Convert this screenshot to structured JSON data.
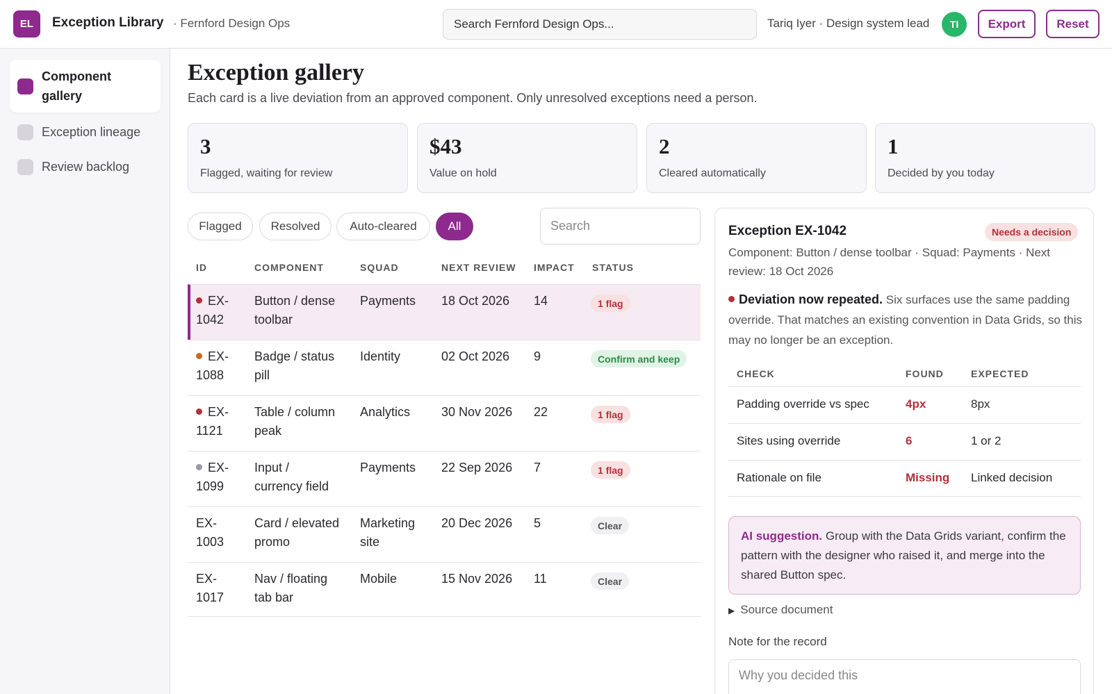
{
  "header": {
    "logo_text": "EL",
    "app_title": "Exception Library",
    "org": "· Fernford Design Ops",
    "search_placeholder": "Search Fernford Design Ops...",
    "user": "Tariq Iyer · Design system lead",
    "avatar": "TI",
    "export_label": "Export",
    "reset_label": "Reset"
  },
  "sidebar": {
    "items": [
      {
        "label": "Component gallery",
        "active": true
      },
      {
        "label": "Exception lineage",
        "active": false
      },
      {
        "label": "Review backlog",
        "active": false
      }
    ]
  },
  "main": {
    "title": "Exception gallery",
    "subtitle": "Each card is a live deviation from an approved component. Only unresolved exceptions need a person.",
    "stats": [
      {
        "value": "3",
        "label": "Flagged, waiting for review"
      },
      {
        "value": "$43",
        "label": "Value on hold"
      },
      {
        "value": "2",
        "label": "Cleared automatically"
      },
      {
        "value": "1",
        "label": "Decided by you today"
      }
    ],
    "filters": [
      "Flagged",
      "Resolved",
      "Auto-cleared",
      "All"
    ],
    "active_filter": "All",
    "table_search_placeholder": "Search",
    "table": {
      "columns": [
        "ID",
        "COMPONENT",
        "SQUAD",
        "NEXT REVIEW",
        "IMPACT",
        "STATUS"
      ],
      "rows": [
        {
          "id_a": "EX-",
          "id_b": "1042",
          "component_a": "Button / dense",
          "component_b": "toolbar",
          "squad_a": "Payments",
          "squad_b": "",
          "next_review": "18 Oct 2026",
          "impact": "14",
          "status": "1 flag",
          "status_kind": "flag",
          "dot_color": "#b2313a",
          "selected": true
        },
        {
          "id_a": "EX-",
          "id_b": "1088",
          "component_a": "Badge / status",
          "component_b": "pill",
          "squad_a": "Identity",
          "squad_b": "",
          "next_review": "02 Oct 2026",
          "impact": "9",
          "status": "Confirm and keep",
          "status_kind": "keep",
          "dot_color": "#c96a1e",
          "selected": false
        },
        {
          "id_a": "EX-",
          "id_b": "1121",
          "component_a": "Table / column",
          "component_b": "peak",
          "squad_a": "Analytics",
          "squad_b": "",
          "next_review": "30 Nov 2026",
          "impact": "22",
          "status": "1 flag",
          "status_kind": "flag",
          "dot_color": "#b2313a",
          "selected": false
        },
        {
          "id_a": "EX-",
          "id_b": "1099",
          "component_a": "Input /",
          "component_b": "currency field",
          "squad_a": "Payments",
          "squad_b": "",
          "next_review": "22 Sep 2026",
          "impact": "7",
          "status": "1 flag",
          "status_kind": "flag",
          "dot_color": "#9a98a3",
          "selected": false
        },
        {
          "id_a": "EX-",
          "id_b": "1003",
          "component_a": "Card / elevated",
          "component_b": "promo",
          "squad_a": "Marketing",
          "squad_b": "site",
          "next_review": "20 Dec 2026",
          "impact": "5",
          "status": "Clear",
          "status_kind": "clear",
          "dot_color": "",
          "selected": false
        },
        {
          "id_a": "EX-",
          "id_b": "1017",
          "component_a": "Nav / floating",
          "component_b": "tab bar",
          "squad_a": "Mobile",
          "squad_b": "",
          "next_review": "15 Nov 2026",
          "impact": "11",
          "status": "Clear",
          "status_kind": "clear",
          "dot_color": "",
          "selected": false
        }
      ]
    }
  },
  "detail": {
    "title": "Exception EX-1042",
    "badge": "Needs a decision",
    "meta": "Component: Button / dense toolbar · Squad: Payments · Next review: 18 Oct 2026",
    "lead": "Deviation now repeated.",
    "body": " Six surfaces use the same padding override. That matches an existing convention in Data Grids, so this may no longer be an exception.",
    "checks": {
      "columns": [
        "CHECK",
        "FOUND",
        "EXPECTED"
      ],
      "rows": [
        {
          "check": "Padding override vs spec",
          "found": "4px",
          "expected": "8px"
        },
        {
          "check": "Sites using override",
          "found": "6",
          "expected": "1 or 2"
        },
        {
          "check": "Rationale on file",
          "found": "Missing",
          "expected": "Linked decision"
        }
      ]
    },
    "ai_label": "AI suggestion.",
    "ai_text": " Group with the Data Grids variant, confirm the pattern with the designer who raised it, and merge into the shared Button spec.",
    "source_label": "Source document",
    "note_label": "Note for the record",
    "note_placeholder": "Why you decided this"
  },
  "colors": {
    "accent": "#8e2a8e",
    "flag": "#b2313a",
    "keep": "#2b8a47",
    "avatar": "#2ab66a"
  }
}
